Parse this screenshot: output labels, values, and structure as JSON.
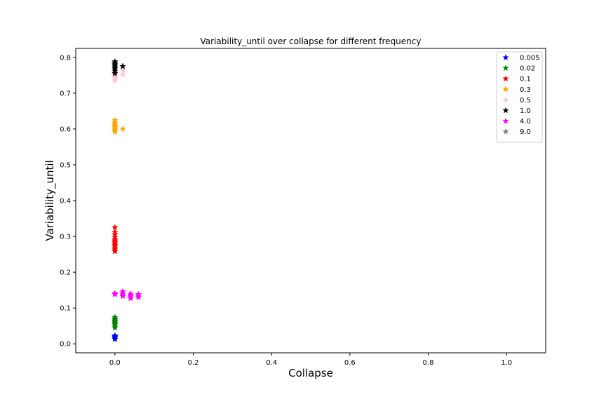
{
  "chart_data": {
    "type": "scatter",
    "title": "Variability_until over collapse for different frequency",
    "xlabel": "Collapse",
    "ylabel": "Variability_until",
    "xlim": [
      -0.1,
      1.1
    ],
    "ylim": [
      -0.025,
      0.825
    ],
    "xticks": [
      0.0,
      0.2,
      0.4,
      0.6,
      0.8,
      1.0
    ],
    "xtick_labels": [
      "0.0",
      "0.2",
      "0.4",
      "0.6",
      "0.8",
      "1.0"
    ],
    "yticks": [
      0.0,
      0.1,
      0.2,
      0.3,
      0.4,
      0.5,
      0.6,
      0.7,
      0.8
    ],
    "ytick_labels": [
      "0.0",
      "0.1",
      "0.2",
      "0.3",
      "0.4",
      "0.5",
      "0.6",
      "0.7",
      "0.8"
    ],
    "grid": false,
    "legend_position": "top-right",
    "marker": "star",
    "series": [
      {
        "name": "0.005",
        "color": "#0000ff",
        "points": [
          [
            0,
            0.013
          ],
          [
            0,
            0.016
          ],
          [
            0,
            0.019
          ],
          [
            0,
            0.021
          ],
          [
            0,
            0.023
          ]
        ]
      },
      {
        "name": "0.02",
        "color": "#008000",
        "points": [
          [
            0,
            0.045
          ],
          [
            0,
            0.05
          ],
          [
            0,
            0.054
          ],
          [
            0,
            0.058
          ],
          [
            0,
            0.061
          ],
          [
            0,
            0.064
          ],
          [
            0,
            0.067
          ],
          [
            0,
            0.07
          ],
          [
            0,
            0.074
          ]
        ]
      },
      {
        "name": "0.1",
        "color": "#ff0000",
        "points": [
          [
            0,
            0.258
          ],
          [
            0,
            0.263
          ],
          [
            0,
            0.268
          ],
          [
            0,
            0.272
          ],
          [
            0,
            0.276
          ],
          [
            0,
            0.28
          ],
          [
            0,
            0.284
          ],
          [
            0,
            0.288
          ],
          [
            0,
            0.292
          ],
          [
            0,
            0.298
          ],
          [
            0,
            0.305
          ],
          [
            0,
            0.312
          ],
          [
            0,
            0.325
          ]
        ]
      },
      {
        "name": "0.3",
        "color": "#ffa500",
        "points": [
          [
            0,
            0.592
          ],
          [
            0,
            0.597
          ],
          [
            0,
            0.601
          ],
          [
            0,
            0.605
          ],
          [
            0,
            0.609
          ],
          [
            0,
            0.613
          ],
          [
            0,
            0.618
          ],
          [
            0,
            0.624
          ],
          [
            0.02,
            0.6
          ]
        ]
      },
      {
        "name": "0.5",
        "color": "#ffc0cb",
        "points": [
          [
            0,
            0.735
          ],
          [
            0,
            0.742
          ],
          [
            0,
            0.748
          ],
          [
            0,
            0.753
          ],
          [
            0,
            0.758
          ],
          [
            0.02,
            0.752
          ],
          [
            0.02,
            0.765
          ]
        ]
      },
      {
        "name": "1.0",
        "color": "#000000",
        "points": [
          [
            0,
            0.755
          ],
          [
            0,
            0.762
          ],
          [
            0,
            0.768
          ],
          [
            0,
            0.772
          ],
          [
            0,
            0.776
          ],
          [
            0,
            0.78
          ],
          [
            0,
            0.784
          ],
          [
            0,
            0.788
          ],
          [
            0.02,
            0.775
          ]
        ]
      },
      {
        "name": "4.0",
        "color": "#ff00ff",
        "points": [
          [
            0,
            0.138
          ],
          [
            0,
            0.141
          ],
          [
            0.02,
            0.133
          ],
          [
            0.02,
            0.137
          ],
          [
            0.02,
            0.141
          ],
          [
            0.02,
            0.146
          ],
          [
            0.04,
            0.127
          ],
          [
            0.04,
            0.132
          ],
          [
            0.04,
            0.136
          ],
          [
            0.04,
            0.14
          ],
          [
            0.06,
            0.13
          ],
          [
            0.06,
            0.134
          ],
          [
            0.06,
            0.138
          ]
        ]
      },
      {
        "name": "9.0",
        "color": "#808080",
        "points": []
      }
    ]
  }
}
